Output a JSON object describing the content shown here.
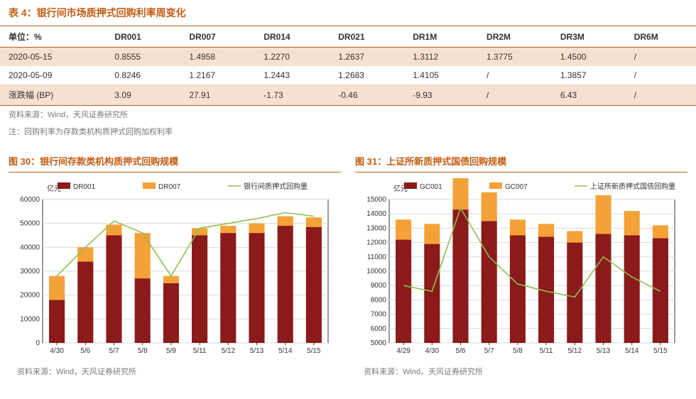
{
  "table4": {
    "title": "表 4：银行间市场质押式回购利率周变化",
    "unit_label": "单位：%",
    "columns": [
      "DR001",
      "DR007",
      "DR014",
      "DR021",
      "DR1M",
      "DR2M",
      "DR3M",
      "DR6M"
    ],
    "rows": [
      {
        "label": "2020-05-15",
        "cells": [
          "0.8555",
          "1.4958",
          "1.2270",
          "1.2637",
          "1.3112",
          "1.3775",
          "1.4500",
          "/"
        ]
      },
      {
        "label": "2020-05-09",
        "cells": [
          "0.8246",
          "1.2167",
          "1.2443",
          "1.2683",
          "1.4105",
          "/",
          "1.3857",
          "/"
        ]
      },
      {
        "label": "涨跌幅 (BP)",
        "cells": [
          "3.09",
          "27.91",
          "-1.73",
          "-0.46",
          "-9.93",
          "/",
          "6.43",
          "/"
        ]
      }
    ],
    "source": "资料来源：Wind，天风证券研究所",
    "note": "注：回购利率为存款类机构质押式回购加权利率"
  },
  "chart30": {
    "title": "图 30：银行间存款类机构质押式回购规模",
    "type": "bar+line",
    "y_unit": "亿元",
    "ylim": [
      0,
      60000
    ],
    "ytick_step": 10000,
    "categories": [
      "4/30",
      "5/6",
      "5/7",
      "5/8",
      "5/9",
      "5/11",
      "5/12",
      "5/13",
      "5/14",
      "5/15"
    ],
    "series": [
      {
        "name": "DR001",
        "color": "#8b1a1a",
        "type": "bar",
        "values": [
          18000,
          34000,
          45000,
          27000,
          25000,
          45000,
          46000,
          46000,
          49000,
          48500
        ]
      },
      {
        "name": "DR007",
        "color": "#f4a137",
        "type": "bar",
        "values": [
          10000,
          6000,
          4500,
          19000,
          3000,
          3000,
          3000,
          4000,
          4000,
          4000
        ]
      },
      {
        "name": "银行间质押式回购量",
        "color": "#8fbf4d",
        "type": "line",
        "values": [
          28000,
          40000,
          51000,
          46000,
          28000,
          48000,
          50000,
          52000,
          54500,
          53000
        ]
      }
    ],
    "background_color": "#ffffff",
    "grid_color": "#d9d9d9",
    "axis_color": "#333333",
    "label_fontsize": 10,
    "source": "资料来源：Wind，天风证券研究所"
  },
  "chart31": {
    "title": "图 31：上证所新质押式国债回购规模",
    "type": "bar+line",
    "y_unit": "亿元",
    "ylim": [
      5000,
      15000
    ],
    "ytick_step": 1000,
    "categories": [
      "4/29",
      "4/30",
      "5/6",
      "5/7",
      "5/8",
      "5/11",
      "5/12",
      "5/13",
      "5/14",
      "5/15"
    ],
    "series": [
      {
        "name": "GC001",
        "color": "#8b1a1a",
        "type": "bar",
        "values": [
          7200,
          6900,
          9300,
          8500,
          7500,
          7400,
          7000,
          7600,
          7500,
          7300
        ]
      },
      {
        "name": "GC007",
        "color": "#f4a137",
        "type": "bar",
        "values": [
          1400,
          1400,
          3600,
          2000,
          1100,
          900,
          800,
          2700,
          1700,
          900
        ]
      },
      {
        "name": "上证所新质押式国债回购量",
        "color": "#8fbf4d",
        "type": "line",
        "values": [
          9000,
          8600,
          14400,
          11000,
          9100,
          8600,
          8200,
          11000,
          9600,
          8600
        ]
      }
    ],
    "background_color": "#ffffff",
    "grid_color": "#d9d9d9",
    "axis_color": "#333333",
    "label_fontsize": 10,
    "source": "资料来源：Wind，天风证券研究所"
  }
}
